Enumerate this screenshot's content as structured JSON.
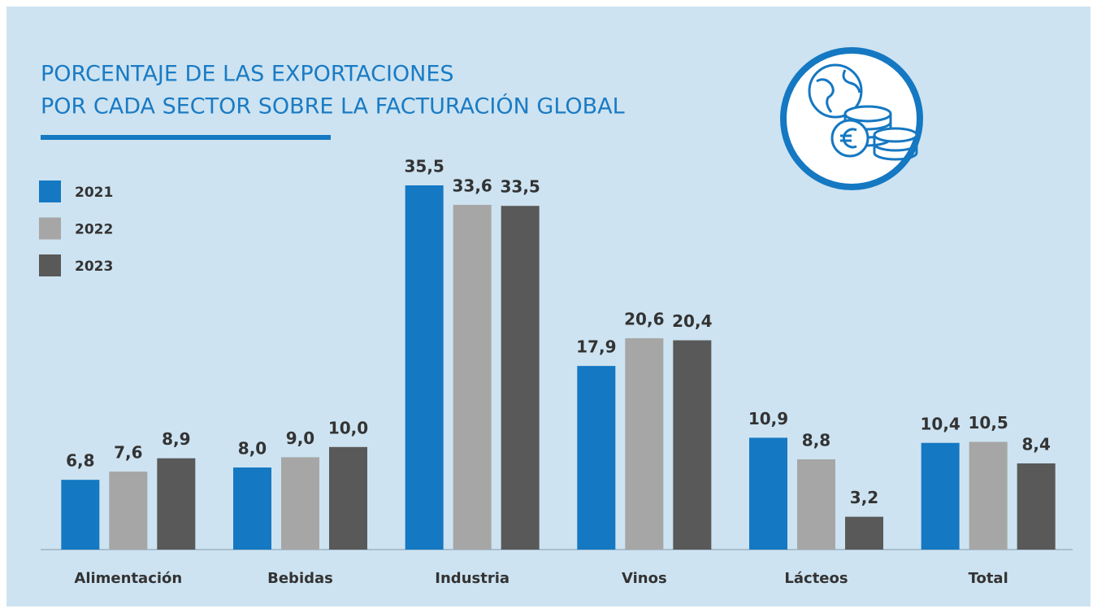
{
  "chart_data": {
    "type": "bar",
    "title_lines": [
      "PORCENTAJE DE LAS EXPORTACIONES",
      "POR CADA SECTOR SOBRE LA FACTURACIÓN GLOBAL"
    ],
    "categories": [
      "Alimentación",
      "Bebidas",
      "Industria",
      "Vinos",
      "Lácteos",
      "Total"
    ],
    "series": [
      {
        "name": "2021",
        "color": "#1578c2",
        "values": [
          6.8,
          8.0,
          35.5,
          17.9,
          10.9,
          10.4
        ],
        "value_labels": [
          "6,8",
          "8,0",
          "35,5",
          "17,9",
          "10,9",
          "10,4"
        ]
      },
      {
        "name": "2022",
        "color": "#a6a6a6",
        "values": [
          7.6,
          9.0,
          33.6,
          20.6,
          8.8,
          10.5
        ],
        "value_labels": [
          "7,6",
          "9,0",
          "33,6",
          "20,6",
          "8,8",
          "10,5"
        ]
      },
      {
        "name": "2023",
        "color": "#595959",
        "values": [
          8.9,
          10.0,
          33.5,
          20.4,
          3.2,
          8.4
        ],
        "value_labels": [
          "8,9",
          "10,0",
          "33,5",
          "20,4",
          "3,2",
          "8,4"
        ]
      }
    ],
    "legend": "top-left"
  }
}
